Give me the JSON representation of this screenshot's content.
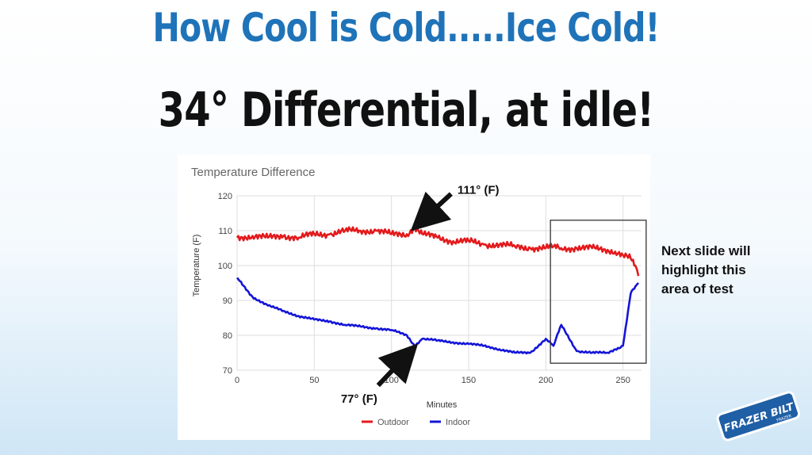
{
  "headline": {
    "title": "How Cool is Cold.....Ice Cold!",
    "subtitle": "34° Differential, at idle!"
  },
  "side_note": {
    "lines": [
      "Next slide will",
      "highlight this",
      "area of test"
    ]
  },
  "logo": {
    "name": "frazer-bilt-logo",
    "main_text": "FRAZER BILT",
    "small_text": "FRAZER"
  },
  "colors": {
    "title": "#1f73b8",
    "outdoor": "#e31a1c",
    "indoor": "#1414d8",
    "annotation": "#111111"
  },
  "chart_data": {
    "type": "line",
    "title": "Temperature Difference",
    "xlabel": "Minutes",
    "ylabel": "Temperature (F)",
    "xlim": [
      0,
      262
    ],
    "ylim": [
      70,
      120
    ],
    "xticks": [
      0,
      50,
      100,
      150,
      200,
      250
    ],
    "yticks": [
      70,
      80,
      90,
      100,
      110,
      120
    ],
    "grid": true,
    "legend_position": "bottom-center",
    "x": [
      0,
      10,
      20,
      30,
      40,
      50,
      60,
      70,
      80,
      90,
      100,
      110,
      115,
      120,
      130,
      140,
      150,
      160,
      170,
      180,
      190,
      200,
      205,
      210,
      220,
      230,
      240,
      245,
      250,
      255,
      258,
      260
    ],
    "series": [
      {
        "name": "Outdoor",
        "values": [
          108,
          108.5,
          108,
          108.5,
          108,
          109,
          109,
          110,
          110,
          110,
          109,
          109,
          111,
          109,
          108,
          107,
          107,
          106,
          106,
          105.5,
          105,
          105,
          105.5,
          105,
          105,
          105,
          104.5,
          104,
          103,
          102,
          100,
          97
        ]
      },
      {
        "name": "Indoor",
        "values": [
          96.5,
          91,
          88.5,
          87,
          85.5,
          84.5,
          84,
          83,
          82.5,
          82,
          81.5,
          80,
          77,
          79,
          78.5,
          78,
          77.5,
          77,
          76,
          75,
          75,
          79,
          77,
          83,
          75.5,
          75,
          75,
          76,
          77,
          92,
          94,
          95
        ]
      }
    ],
    "annotations": [
      {
        "text": "111° (F)",
        "x": 115,
        "y": 111
      },
      {
        "text": "77° (F)",
        "x": 115,
        "y": 77
      }
    ],
    "highlight_box": {
      "x": [
        203,
        265
      ],
      "y": [
        72,
        113
      ]
    }
  }
}
